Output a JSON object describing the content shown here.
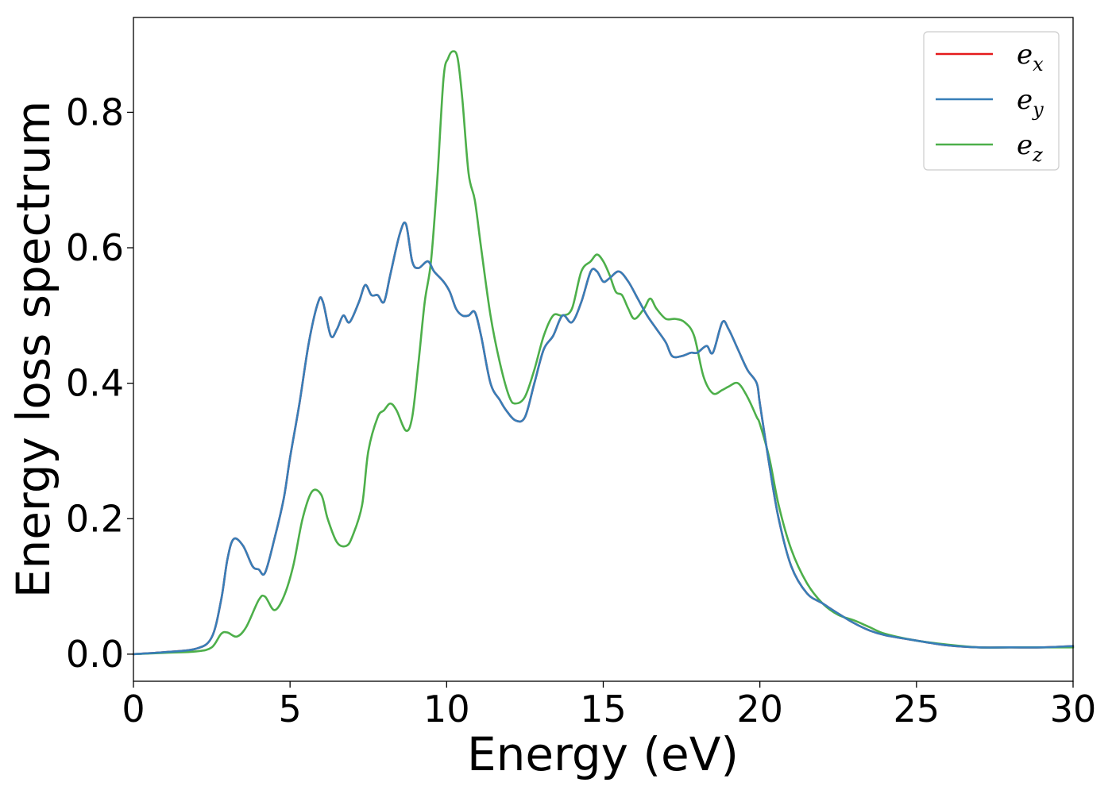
{
  "chart_data": {
    "type": "line",
    "title": "",
    "xlabel": "Energy (eV)",
    "ylabel": "Energy loss spectrum",
    "xlim": [
      0,
      30
    ],
    "ylim": [
      -0.04,
      0.94
    ],
    "xticks": [
      0,
      5,
      10,
      15,
      20,
      25,
      30
    ],
    "xtick_labels": [
      "0",
      "5",
      "10",
      "15",
      "20",
      "25",
      "30"
    ],
    "yticks": [
      0.0,
      0.2,
      0.4,
      0.6,
      0.8
    ],
    "ytick_labels": [
      "0.0",
      "0.2",
      "0.4",
      "0.6",
      "0.8"
    ],
    "grid": false,
    "legend_position": "top-right",
    "series": [
      {
        "name": "e",
        "subscript": "x",
        "color": "#e41a1c",
        "x": [
          0,
          1,
          2,
          2.5,
          2.8,
          3.0,
          3.2,
          3.5,
          3.8,
          4.0,
          4.2,
          4.5,
          4.8,
          5.0,
          5.3,
          5.6,
          5.9,
          6.05,
          6.3,
          6.5,
          6.7,
          6.9,
          7.2,
          7.4,
          7.6,
          7.8,
          8.0,
          8.2,
          8.5,
          8.7,
          8.9,
          9.1,
          9.4,
          9.6,
          9.9,
          10.1,
          10.3,
          10.5,
          10.7,
          10.9,
          11.1,
          11.4,
          11.7,
          11.9,
          12.2,
          12.5,
          12.8,
          13.1,
          13.4,
          13.7,
          14.0,
          14.3,
          14.6,
          14.8,
          15.0,
          15.2,
          15.5,
          15.8,
          16.1,
          16.4,
          16.7,
          17.0,
          17.2,
          17.5,
          17.8,
          18.0,
          18.3,
          18.5,
          18.8,
          19.0,
          19.3,
          19.6,
          19.9,
          20.0,
          20.3,
          20.6,
          21.0,
          21.5,
          22.0,
          22.5,
          23.0,
          23.5,
          24.0,
          25.0,
          26.0,
          27.0,
          28.0,
          29.0,
          30.0
        ],
        "y": [
          0.0,
          0.003,
          0.008,
          0.025,
          0.08,
          0.14,
          0.17,
          0.16,
          0.13,
          0.125,
          0.12,
          0.17,
          0.23,
          0.29,
          0.37,
          0.46,
          0.52,
          0.52,
          0.47,
          0.48,
          0.5,
          0.49,
          0.52,
          0.545,
          0.53,
          0.53,
          0.52,
          0.56,
          0.62,
          0.635,
          0.58,
          0.57,
          0.58,
          0.565,
          0.55,
          0.535,
          0.51,
          0.5,
          0.5,
          0.505,
          0.47,
          0.4,
          0.375,
          0.36,
          0.345,
          0.35,
          0.4,
          0.45,
          0.47,
          0.5,
          0.49,
          0.52,
          0.565,
          0.565,
          0.55,
          0.555,
          0.565,
          0.55,
          0.525,
          0.5,
          0.48,
          0.46,
          0.44,
          0.44,
          0.445,
          0.445,
          0.455,
          0.445,
          0.49,
          0.48,
          0.45,
          0.42,
          0.4,
          0.37,
          0.28,
          0.2,
          0.13,
          0.09,
          0.075,
          0.06,
          0.046,
          0.035,
          0.028,
          0.02,
          0.013,
          0.01,
          0.01,
          0.01,
          0.012
        ]
      },
      {
        "name": "e",
        "subscript": "y",
        "color": "#377eb8",
        "x": [
          0,
          1,
          2,
          2.5,
          2.8,
          3.0,
          3.2,
          3.5,
          3.8,
          4.0,
          4.2,
          4.5,
          4.8,
          5.0,
          5.3,
          5.6,
          5.9,
          6.05,
          6.3,
          6.5,
          6.7,
          6.9,
          7.2,
          7.4,
          7.6,
          7.8,
          8.0,
          8.2,
          8.5,
          8.7,
          8.9,
          9.1,
          9.4,
          9.6,
          9.9,
          10.1,
          10.3,
          10.5,
          10.7,
          10.9,
          11.1,
          11.4,
          11.7,
          11.9,
          12.2,
          12.5,
          12.8,
          13.1,
          13.4,
          13.7,
          14.0,
          14.3,
          14.6,
          14.8,
          15.0,
          15.2,
          15.5,
          15.8,
          16.1,
          16.4,
          16.7,
          17.0,
          17.2,
          17.5,
          17.8,
          18.0,
          18.3,
          18.5,
          18.8,
          19.0,
          19.3,
          19.6,
          19.9,
          20.0,
          20.3,
          20.6,
          21.0,
          21.5,
          22.0,
          22.5,
          23.0,
          23.5,
          24.0,
          25.0,
          26.0,
          27.0,
          28.0,
          29.0,
          30.0
        ],
        "y": [
          0.0,
          0.003,
          0.008,
          0.025,
          0.08,
          0.14,
          0.17,
          0.16,
          0.13,
          0.125,
          0.12,
          0.17,
          0.23,
          0.29,
          0.37,
          0.46,
          0.52,
          0.52,
          0.47,
          0.48,
          0.5,
          0.49,
          0.52,
          0.545,
          0.53,
          0.53,
          0.52,
          0.56,
          0.62,
          0.635,
          0.58,
          0.57,
          0.58,
          0.565,
          0.55,
          0.535,
          0.51,
          0.5,
          0.5,
          0.505,
          0.47,
          0.4,
          0.375,
          0.36,
          0.345,
          0.35,
          0.4,
          0.45,
          0.47,
          0.5,
          0.49,
          0.52,
          0.565,
          0.565,
          0.55,
          0.555,
          0.565,
          0.55,
          0.525,
          0.5,
          0.48,
          0.46,
          0.44,
          0.44,
          0.445,
          0.445,
          0.455,
          0.445,
          0.49,
          0.48,
          0.45,
          0.42,
          0.4,
          0.37,
          0.28,
          0.2,
          0.13,
          0.09,
          0.075,
          0.06,
          0.046,
          0.035,
          0.028,
          0.02,
          0.013,
          0.01,
          0.01,
          0.01,
          0.012
        ]
      },
      {
        "name": "e",
        "subscript": "z",
        "color": "#4daf4a",
        "x": [
          0,
          1,
          2,
          2.5,
          2.8,
          3.0,
          3.3,
          3.6,
          4.0,
          4.2,
          4.5,
          4.8,
          5.1,
          5.4,
          5.7,
          6.0,
          6.2,
          6.5,
          6.8,
          7.0,
          7.3,
          7.5,
          7.8,
          8.0,
          8.2,
          8.4,
          8.7,
          8.9,
          9.1,
          9.3,
          9.5,
          9.7,
          9.9,
          10.05,
          10.2,
          10.35,
          10.5,
          10.7,
          10.9,
          11.1,
          11.4,
          11.7,
          12.0,
          12.2,
          12.5,
          12.8,
          13.1,
          13.4,
          13.7,
          14.0,
          14.3,
          14.6,
          14.8,
          15.0,
          15.2,
          15.4,
          15.6,
          15.8,
          16.0,
          16.3,
          16.5,
          16.7,
          17.0,
          17.3,
          17.6,
          17.9,
          18.2,
          18.5,
          18.8,
          19.0,
          19.3,
          19.6,
          19.9,
          20.0,
          20.3,
          20.6,
          21.0,
          21.5,
          22.0,
          22.5,
          23.0,
          23.5,
          24.0,
          25.0,
          26.0,
          27.0,
          28.0,
          29.0,
          30.0
        ],
        "y": [
          0.0,
          0.002,
          0.004,
          0.01,
          0.03,
          0.032,
          0.026,
          0.04,
          0.08,
          0.085,
          0.065,
          0.085,
          0.13,
          0.2,
          0.24,
          0.235,
          0.2,
          0.165,
          0.16,
          0.175,
          0.22,
          0.3,
          0.35,
          0.36,
          0.37,
          0.36,
          0.33,
          0.35,
          0.43,
          0.52,
          0.58,
          0.7,
          0.85,
          0.88,
          0.89,
          0.88,
          0.82,
          0.71,
          0.67,
          0.6,
          0.5,
          0.43,
          0.38,
          0.37,
          0.38,
          0.42,
          0.47,
          0.5,
          0.5,
          0.51,
          0.565,
          0.58,
          0.59,
          0.58,
          0.56,
          0.535,
          0.53,
          0.51,
          0.495,
          0.51,
          0.525,
          0.51,
          0.495,
          0.495,
          0.49,
          0.47,
          0.41,
          0.385,
          0.39,
          0.395,
          0.4,
          0.38,
          0.35,
          0.34,
          0.29,
          0.22,
          0.155,
          0.105,
          0.075,
          0.058,
          0.05,
          0.04,
          0.03,
          0.02,
          0.014,
          0.01,
          0.01,
          0.01,
          0.01
        ]
      }
    ]
  }
}
